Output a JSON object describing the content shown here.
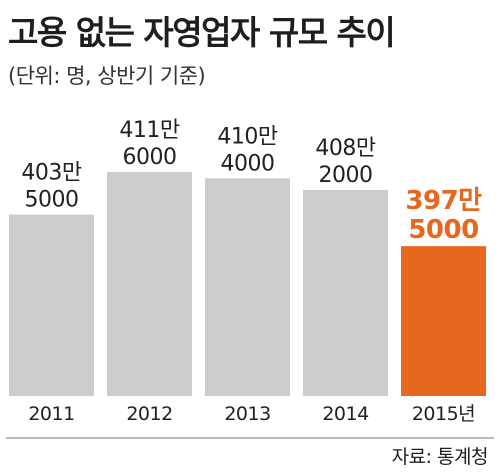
{
  "title": "고용 없는 자영업자 규모 추이",
  "subtitle": "(단위: 명, 상반기 기준)",
  "source": "자료: 통계청",
  "colors": {
    "bar": "#cccccc",
    "highlight": "#e8671f",
    "label": "#222222",
    "axis": "#bbbbbb"
  },
  "chart_data": {
    "type": "bar",
    "categories": [
      "2011",
      "2012",
      "2013",
      "2014",
      "2015년"
    ],
    "values": [
      4035000,
      4116000,
      4104000,
      4082000,
      3975000
    ],
    "value_labels": [
      [
        "403만",
        "5000"
      ],
      [
        "411만",
        "6000"
      ],
      [
        "410만",
        "4000"
      ],
      [
        "408만",
        "2000"
      ],
      [
        "397만",
        "5000"
      ]
    ],
    "highlight_index": 4,
    "title": "고용 없는 자영업자 규모 추이",
    "xlabel": "",
    "ylabel": "",
    "ylim": [
      3690000,
      4116000
    ],
    "grid": false,
    "legend": "none"
  }
}
